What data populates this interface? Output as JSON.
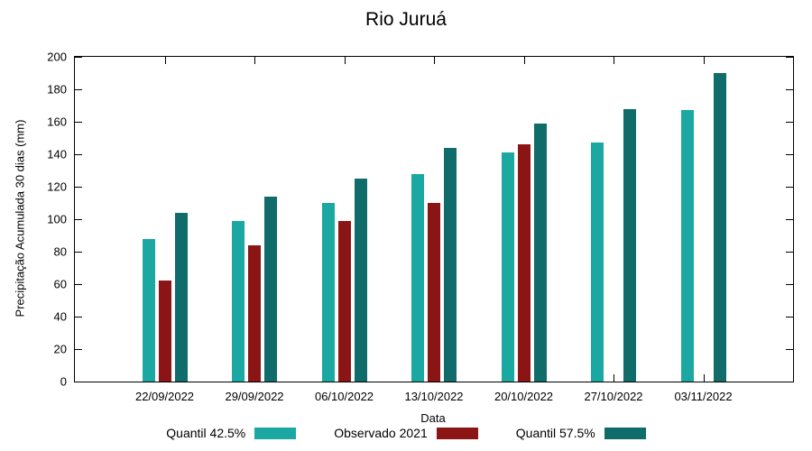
{
  "title": "Rio Juruá",
  "chart_data": {
    "type": "bar",
    "title": "Rio Juruá",
    "xlabel": "Data",
    "ylabel": "Precipitação Acumulada 30 dias (mm)",
    "ylim": [
      0,
      200
    ],
    "ytick_step": 20,
    "grid": false,
    "legend_position": "bottom",
    "categories": [
      "22/09/2022",
      "29/09/2022",
      "06/10/2022",
      "13/10/2022",
      "20/10/2022",
      "27/10/2022",
      "03/11/2022"
    ],
    "series": [
      {
        "name": "Quantil 42.5%",
        "color": "#1ba8a2",
        "values": [
          88,
          99,
          110,
          128,
          141,
          147,
          167
        ]
      },
      {
        "name": "Observado 2021",
        "color": "#8b1515",
        "values": [
          62,
          84,
          99,
          110,
          146,
          null,
          null
        ]
      },
      {
        "name": "Quantil 57.5%",
        "color": "#106b6b",
        "values": [
          104,
          114,
          125,
          144,
          159,
          168,
          190
        ]
      }
    ]
  }
}
